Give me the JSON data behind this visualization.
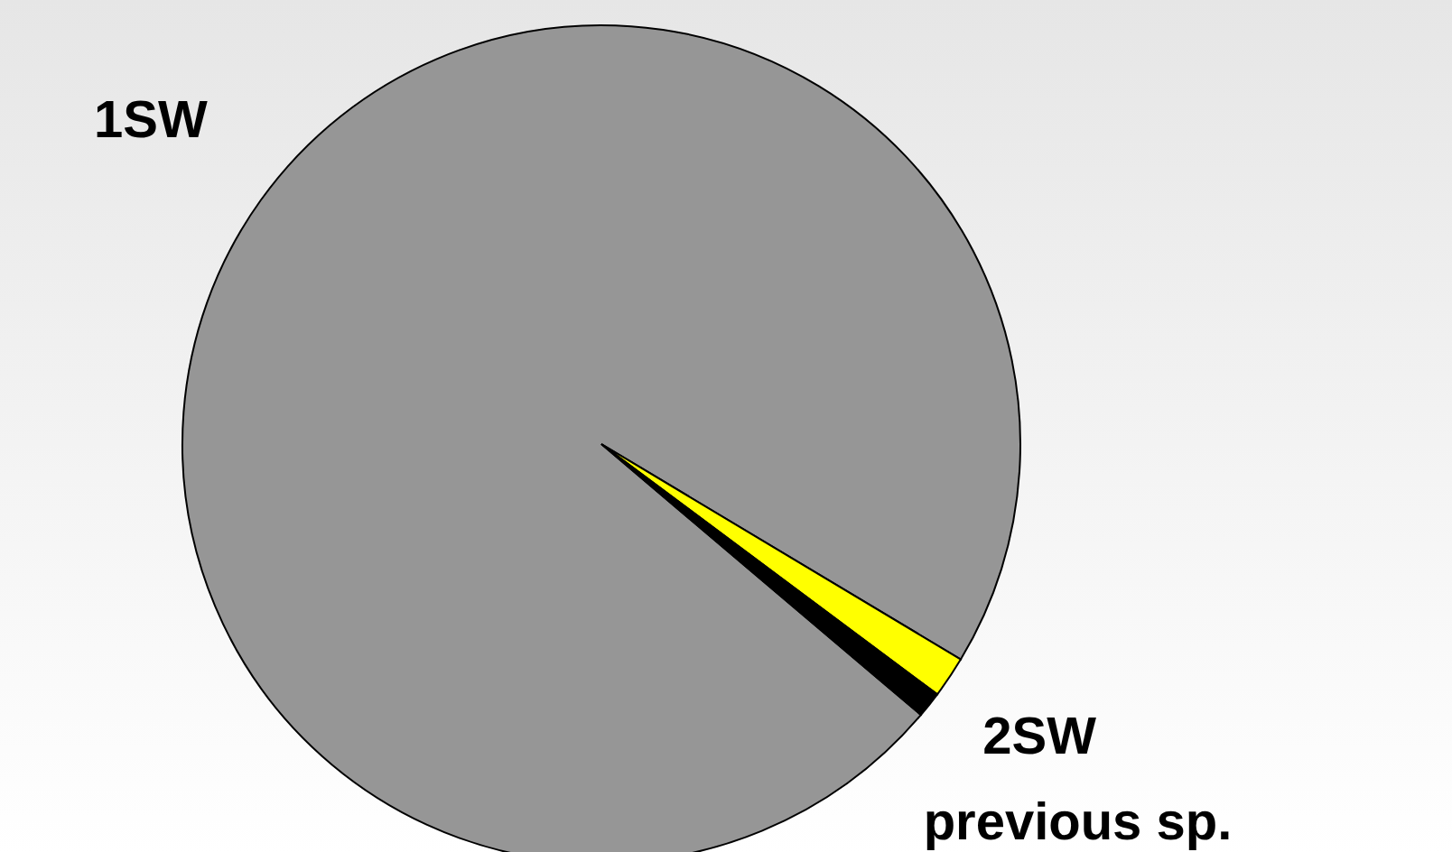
{
  "chart_data": {
    "type": "pie",
    "categories": [
      "1SW",
      "2SW",
      "previous sp."
    ],
    "values": [
      97.4,
      1.6,
      1.0
    ],
    "colors": [
      "#969696",
      "#ffff00",
      "#000000"
    ]
  }
}
